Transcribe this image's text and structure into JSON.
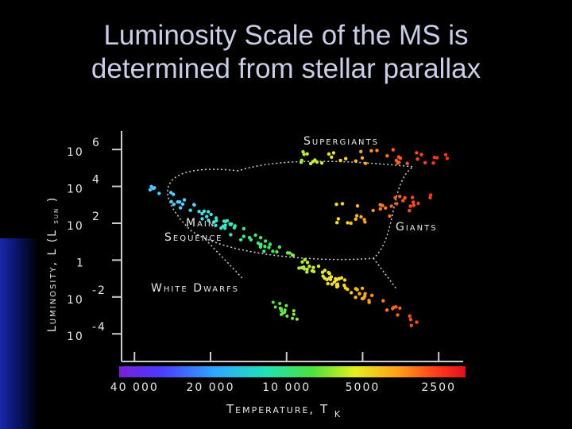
{
  "slide": {
    "title_line1": "Luminosity Scale of the MS is",
    "title_line2": "determined from stellar parallax"
  },
  "chart_data": {
    "type": "scatter",
    "title": "",
    "xlabel": "Temperature, T",
    "xlabel_sub": "K",
    "ylabel": "Luminosity, L (L",
    "ylabel_sub": "sun",
    "ylabel_end": ")",
    "x_scale": "log, decreasing",
    "y_scale": "log",
    "xlim": [
      45000,
      2000
    ],
    "ylim_log10": [
      -5.5,
      7
    ],
    "x_ticks": [
      {
        "value": 40000,
        "label": "40 000"
      },
      {
        "value": 20000,
        "label": "20 000"
      },
      {
        "value": 10000,
        "label": "10 000"
      },
      {
        "value": 5000,
        "label": "5000"
      },
      {
        "value": 2500,
        "label": "2500"
      }
    ],
    "y_ticks": [
      {
        "exp": 6,
        "base": "10",
        "sup": "6"
      },
      {
        "exp": 4,
        "base": "10",
        "sup": "4"
      },
      {
        "exp": 2,
        "base": "10",
        "sup": "2"
      },
      {
        "exp": 0,
        "base": "1",
        "sup": ""
      },
      {
        "exp": -2,
        "base": "10",
        "sup": "-2"
      },
      {
        "exp": -4,
        "base": "10",
        "sup": "-4"
      }
    ],
    "region_labels": {
      "supergiants": "Supergiants",
      "giants": "Giants",
      "main_sequence_1": "Main",
      "main_sequence_2": "Sequence",
      "white_dwarfs": "White Dwarfs"
    },
    "colors": {
      "axis": "#cccccc",
      "outline": "#d0d0d0",
      "hot": "#4fc4ff",
      "cool": "#ff3b1f"
    },
    "regions": {
      "main_sequence": {
        "logT_range": [
          4.55,
          3.48
        ],
        "logL_at_start": 4.0,
        "logL_at_end": -3.4,
        "count": 130,
        "scatter_logL": 0.35
      },
      "giants": {
        "logT_range": [
          3.82,
          3.42
        ],
        "logL_range": [
          1.8,
          3.8
        ],
        "count": 32
      },
      "supergiants": {
        "logT_range": [
          3.95,
          3.36
        ],
        "logL_range": [
          5.2,
          6.0
        ],
        "count": 38
      },
      "white_dwarfs": {
        "logT_range": [
          4.06,
          3.95
        ],
        "logL_range": [
          -3.4,
          -2.1
        ],
        "count": 16
      }
    }
  }
}
